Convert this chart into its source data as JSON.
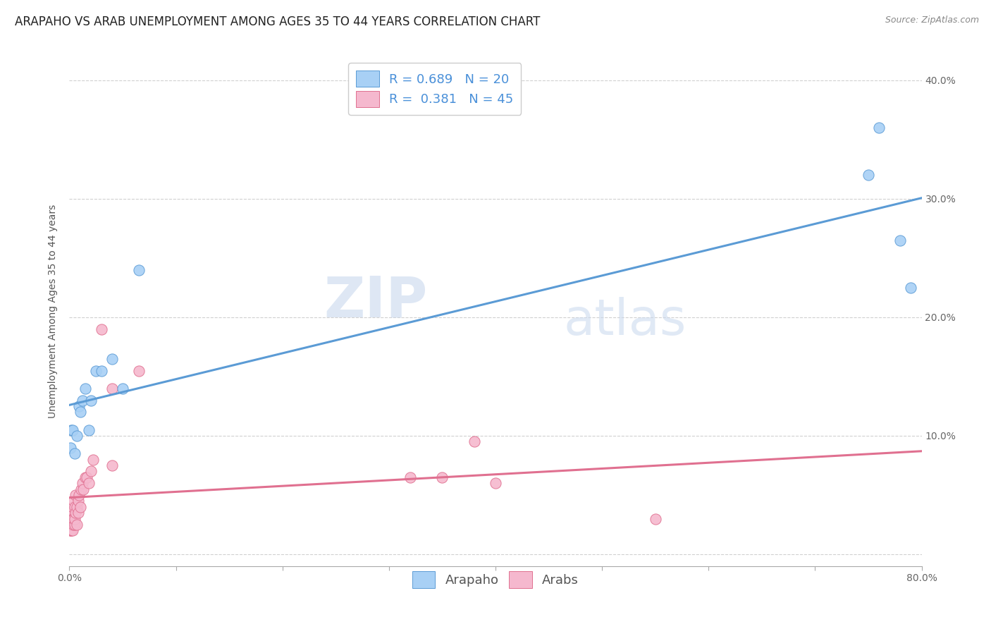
{
  "title": "ARAPAHO VS ARAB UNEMPLOYMENT AMONG AGES 35 TO 44 YEARS CORRELATION CHART",
  "source": "Source: ZipAtlas.com",
  "ylabel": "Unemployment Among Ages 35 to 44 years",
  "xlim": [
    0.0,
    0.8
  ],
  "ylim": [
    -0.01,
    0.42
  ],
  "xticks": [
    0.0,
    0.1,
    0.2,
    0.3,
    0.4,
    0.5,
    0.6,
    0.7,
    0.8
  ],
  "xticklabels_sparse": [
    "0.0%",
    "",
    "",
    "",
    "",
    "",
    "",
    "",
    "80.0%"
  ],
  "yticks_right": [
    0.0,
    0.1,
    0.2,
    0.3,
    0.4
  ],
  "yticklabels_right": [
    "",
    "10.0%",
    "20.0%",
    "30.0%",
    "40.0%"
  ],
  "arapaho_R": 0.689,
  "arapaho_N": 20,
  "arab_R": 0.381,
  "arab_N": 45,
  "arapaho_color": "#a8d0f5",
  "arab_color": "#f5b8ce",
  "arapaho_line_color": "#5b9bd5",
  "arab_line_color": "#e07090",
  "watermark_zip": "ZIP",
  "watermark_atlas": "atlas",
  "arapaho_x": [
    0.001,
    0.002,
    0.003,
    0.005,
    0.007,
    0.009,
    0.01,
    0.012,
    0.015,
    0.018,
    0.02,
    0.025,
    0.03,
    0.04,
    0.05,
    0.065,
    0.75,
    0.76,
    0.78,
    0.79
  ],
  "arapaho_y": [
    0.09,
    0.105,
    0.105,
    0.085,
    0.1,
    0.125,
    0.12,
    0.13,
    0.14,
    0.105,
    0.13,
    0.155,
    0.155,
    0.165,
    0.14,
    0.24,
    0.32,
    0.36,
    0.265,
    0.225
  ],
  "arab_x": [
    0.001,
    0.001,
    0.001,
    0.001,
    0.001,
    0.002,
    0.002,
    0.002,
    0.002,
    0.002,
    0.003,
    0.003,
    0.003,
    0.003,
    0.004,
    0.004,
    0.004,
    0.005,
    0.005,
    0.005,
    0.006,
    0.006,
    0.007,
    0.007,
    0.008,
    0.008,
    0.009,
    0.01,
    0.011,
    0.012,
    0.013,
    0.015,
    0.016,
    0.018,
    0.02,
    0.022,
    0.03,
    0.04,
    0.04,
    0.065,
    0.32,
    0.35,
    0.55,
    0.38,
    0.4
  ],
  "arab_y": [
    0.025,
    0.02,
    0.03,
    0.02,
    0.03,
    0.02,
    0.025,
    0.03,
    0.02,
    0.035,
    0.025,
    0.03,
    0.02,
    0.04,
    0.025,
    0.03,
    0.045,
    0.04,
    0.025,
    0.03,
    0.05,
    0.035,
    0.04,
    0.025,
    0.045,
    0.035,
    0.05,
    0.04,
    0.055,
    0.06,
    0.055,
    0.065,
    0.065,
    0.06,
    0.07,
    0.08,
    0.19,
    0.14,
    0.075,
    0.155,
    0.065,
    0.065,
    0.03,
    0.095,
    0.06
  ],
  "background_color": "#ffffff",
  "grid_color": "#d0d0d0",
  "title_fontsize": 12,
  "axis_label_fontsize": 10,
  "tick_fontsize": 10,
  "legend_fontsize": 13
}
